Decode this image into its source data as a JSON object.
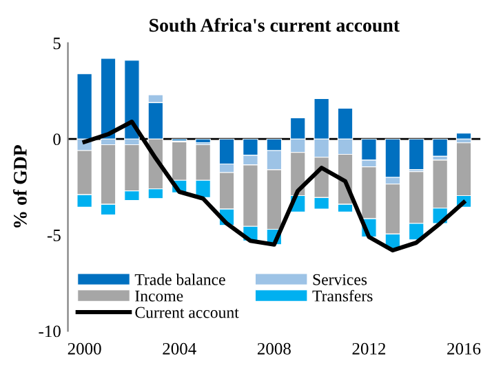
{
  "chart_data": {
    "type": "bar",
    "stacked": true,
    "title": "South Africa's current account",
    "ylabel": "% of GDP",
    "categories": [
      "2000",
      null,
      null,
      null,
      "2004",
      null,
      null,
      null,
      "2008",
      null,
      null,
      null,
      "2012",
      null,
      null,
      null,
      "2016"
    ],
    "series": [
      {
        "name": "Trade balance",
        "color": "#0070c0",
        "values": [
          3.4,
          4.2,
          4.1,
          1.9,
          -0.1,
          -0.2,
          -1.3,
          -0.85,
          -0.6,
          1.1,
          2.1,
          1.6,
          -1.1,
          -2.0,
          -1.6,
          -0.9,
          0.3
        ]
      },
      {
        "name": "Services",
        "color": "#9dc3e6",
        "values": [
          -0.6,
          -0.3,
          -0.3,
          0.4,
          -0.05,
          -0.1,
          -0.45,
          -0.5,
          -1.0,
          -0.7,
          -0.95,
          -0.8,
          -0.35,
          -0.35,
          -0.1,
          -0.2,
          -0.2
        ]
      },
      {
        "name": "Income",
        "color": "#a6a6a6",
        "values": [
          -2.3,
          -3.1,
          -2.4,
          -2.6,
          -2.0,
          -1.85,
          -1.9,
          -3.2,
          -3.1,
          -2.25,
          -2.1,
          -2.6,
          -2.7,
          -2.6,
          -2.7,
          -2.5,
          -2.75
        ]
      },
      {
        "name": "Transfers",
        "color": "#00b0f0",
        "values": [
          -0.65,
          -0.55,
          -0.5,
          -0.5,
          -0.65,
          -0.9,
          -0.85,
          -0.75,
          -0.8,
          -0.85,
          -0.6,
          -0.4,
          -0.95,
          -0.8,
          -0.85,
          -0.8,
          -0.6
        ]
      },
      {
        "name": "Current account",
        "type": "line",
        "color": "#000000",
        "values": [
          -0.15,
          0.25,
          0.9,
          -1.0,
          -2.75,
          -3.1,
          -4.4,
          -5.3,
          -5.5,
          -2.7,
          -1.5,
          -2.2,
          -5.1,
          -5.8,
          -5.4,
          -4.4,
          -3.3
        ]
      }
    ],
    "ylim": [
      -10,
      5
    ],
    "yticks": [
      -10,
      -5,
      0,
      5
    ],
    "grid": false,
    "legend": "bottom left",
    "marker": "none",
    "line_style": "solid",
    "ref_lines": [
      {
        "axis": "y",
        "value": 0,
        "color": "#000000"
      }
    ]
  }
}
